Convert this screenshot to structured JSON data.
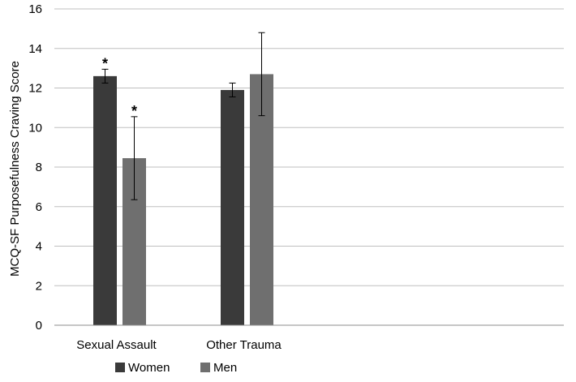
{
  "chart_data": {
    "type": "bar",
    "title": "",
    "xlabel": "",
    "ylabel": "MCQ-SF Purposefulness  Craving Score",
    "ylim": [
      0,
      16
    ],
    "yticks": [
      0,
      2,
      4,
      6,
      8,
      10,
      12,
      14,
      16
    ],
    "grid": true,
    "legend_position": "bottom",
    "categories": [
      "Sexual Assault",
      "Other Trauma"
    ],
    "series": [
      {
        "name": "Women",
        "color": "#3a3a3a",
        "values": [
          12.6,
          11.9
        ],
        "error": [
          0.35,
          0.35
        ],
        "significance": [
          "*",
          ""
        ]
      },
      {
        "name": "Men",
        "color": "#6f6f6f",
        "values": [
          8.45,
          12.7
        ],
        "error": [
          2.1,
          2.1
        ],
        "significance": [
          "*",
          ""
        ]
      }
    ]
  }
}
